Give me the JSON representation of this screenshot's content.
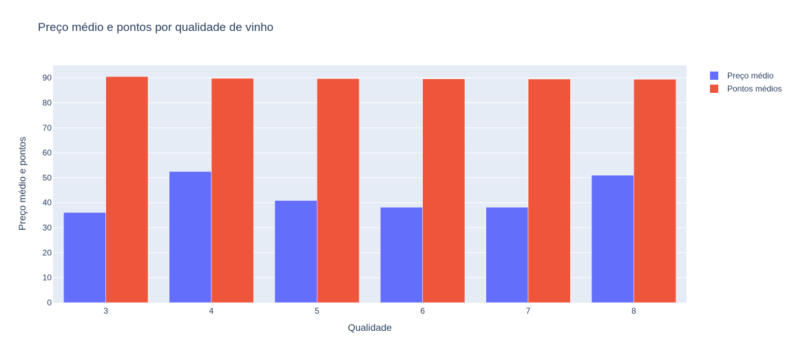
{
  "chart_data": {
    "type": "bar",
    "title": "Preço médio e pontos por qualidade de vinho",
    "xlabel": "Qualidade",
    "ylabel": "Preço médio e pontos",
    "categories": [
      "3",
      "4",
      "5",
      "6",
      "7",
      "8"
    ],
    "series": [
      {
        "name": "Preço médio",
        "color": "#636efa",
        "values": [
          36.1,
          52.5,
          40.9,
          38.2,
          38.2,
          51.0
        ]
      },
      {
        "name": "Pontos médios",
        "color": "#ef553b",
        "values": [
          90.5,
          89.8,
          89.7,
          89.6,
          89.5,
          89.4
        ]
      }
    ],
    "ylim": [
      0,
      95
    ],
    "yticks": [
      0,
      10,
      20,
      30,
      40,
      50,
      60,
      70,
      80,
      90
    ],
    "grid": true,
    "legend_position": "top-right",
    "plot_background": "#e5ecf6"
  }
}
